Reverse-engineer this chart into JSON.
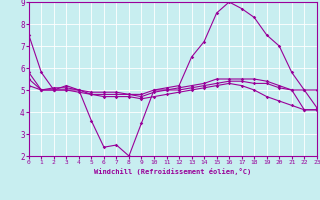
{
  "xlabel": "Windchill (Refroidissement éolien,°C)",
  "xlim": [
    0,
    23
  ],
  "ylim": [
    2,
    9
  ],
  "yticks": [
    2,
    3,
    4,
    5,
    6,
    7,
    8,
    9
  ],
  "xticks": [
    0,
    1,
    2,
    3,
    4,
    5,
    6,
    7,
    8,
    9,
    10,
    11,
    12,
    13,
    14,
    15,
    16,
    17,
    18,
    19,
    20,
    21,
    22,
    23
  ],
  "background_color": "#c8eef0",
  "line_color": "#990099",
  "grid_color": "#ffffff",
  "line1_x": [
    0,
    1,
    2,
    3,
    4,
    5,
    6,
    7,
    8,
    9,
    10,
    11,
    12,
    13,
    14,
    15,
    16,
    17,
    18,
    19,
    20,
    21,
    22,
    23
  ],
  "line1_y": [
    7.5,
    5.8,
    5.0,
    5.2,
    5.0,
    3.6,
    2.4,
    2.5,
    2.0,
    3.5,
    5.0,
    5.1,
    5.2,
    6.5,
    7.2,
    8.5,
    9.0,
    8.7,
    8.3,
    7.5,
    7.0,
    5.8,
    5.0,
    5.0
  ],
  "line2_x": [
    0,
    1,
    2,
    3,
    4,
    5,
    6,
    7,
    8,
    9,
    10,
    11,
    12,
    13,
    14,
    15,
    16,
    17,
    18,
    19,
    20,
    21,
    22,
    23
  ],
  "line2_y": [
    5.8,
    5.0,
    5.1,
    5.1,
    5.0,
    4.9,
    4.9,
    4.9,
    4.8,
    4.8,
    5.0,
    5.0,
    5.1,
    5.2,
    5.3,
    5.5,
    5.5,
    5.5,
    5.5,
    5.4,
    5.2,
    5.0,
    5.0,
    4.2
  ],
  "line3_x": [
    0,
    1,
    2,
    3,
    4,
    5,
    6,
    7,
    8,
    9,
    10,
    11,
    12,
    13,
    14,
    15,
    16,
    17,
    18,
    19,
    20,
    21,
    22,
    23
  ],
  "line3_y": [
    5.5,
    5.0,
    5.0,
    5.0,
    5.0,
    4.8,
    4.8,
    4.8,
    4.8,
    4.7,
    4.9,
    5.0,
    5.0,
    5.1,
    5.2,
    5.3,
    5.4,
    5.4,
    5.3,
    5.3,
    5.1,
    5.0,
    4.1,
    4.1
  ],
  "line4_x": [
    0,
    1,
    2,
    3,
    4,
    5,
    6,
    7,
    8,
    9,
    10,
    11,
    12,
    13,
    14,
    15,
    16,
    17,
    18,
    19,
    20,
    21,
    22,
    23
  ],
  "line4_y": [
    5.2,
    5.0,
    5.0,
    5.0,
    4.9,
    4.8,
    4.7,
    4.7,
    4.7,
    4.6,
    4.7,
    4.8,
    4.9,
    5.0,
    5.1,
    5.2,
    5.3,
    5.2,
    5.0,
    4.7,
    4.5,
    4.3,
    4.1,
    4.1
  ]
}
